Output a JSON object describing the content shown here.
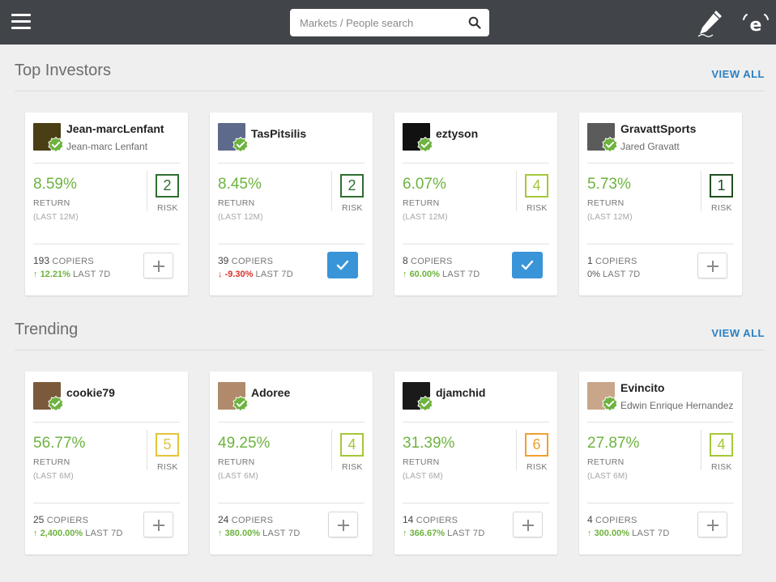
{
  "header": {
    "search_placeholder": "Markets / People search",
    "icons": [
      "menu-icon",
      "search-icon",
      "pen-icon",
      "etoro-logo-icon"
    ]
  },
  "colors": {
    "header_bg": "#414449",
    "link": "#2a7fc2",
    "positive": "#6db33f",
    "negative": "#d9302a",
    "copy_button": "#3a94d8"
  },
  "sections": [
    {
      "title": "Top Investors",
      "view_all": "VIEW ALL",
      "cards": [
        {
          "username": "Jean-marcLenfant",
          "full_name": "Jean-marc Lenfant",
          "return": "8.59%",
          "return_label": "RETURN",
          "period": "(LAST 12M)",
          "risk": "2",
          "risk_label": "RISK",
          "risk_color": "#2e6e2e",
          "copiers_count": "193",
          "copiers_label": "COPIERS",
          "change_arrow": "↑",
          "change": "12.21%",
          "change_dir": "up",
          "change_label": "LAST 7D",
          "action": "add",
          "avatar_color": "#4a3e14"
        },
        {
          "username": "TasPitsilis",
          "full_name": "",
          "return": "8.45%",
          "return_label": "RETURN",
          "period": "(LAST 12M)",
          "risk": "2",
          "risk_label": "RISK",
          "risk_color": "#2e6e2e",
          "copiers_count": "39",
          "copiers_label": "COPIERS",
          "change_arrow": "↓",
          "change": "-9.30%",
          "change_dir": "down",
          "change_label": "LAST 7D",
          "action": "copied",
          "avatar_color": "#5d6a8c"
        },
        {
          "username": "eztyson",
          "full_name": "",
          "return": "6.07%",
          "return_label": "RETURN",
          "period": "(LAST 12M)",
          "risk": "4",
          "risk_label": "RISK",
          "risk_color": "#a4c83a",
          "copiers_count": "8",
          "copiers_label": "COPIERS",
          "change_arrow": "↑",
          "change": "60.00%",
          "change_dir": "up",
          "change_label": "LAST 7D",
          "action": "copied",
          "avatar_color": "#111111"
        },
        {
          "username": "GravattSports",
          "full_name": "Jared Gravatt",
          "return": "5.73%",
          "return_label": "RETURN",
          "period": "(LAST 12M)",
          "risk": "1",
          "risk_label": "RISK",
          "risk_color": "#1f4f1f",
          "copiers_count": "1",
          "copiers_label": "COPIERS",
          "change_arrow": "",
          "change": "0%",
          "change_dir": "flat",
          "change_label": "LAST 7D",
          "action": "add",
          "avatar_color": "#5b5b5b"
        }
      ]
    },
    {
      "title": "Trending",
      "view_all": "VIEW ALL",
      "cards": [
        {
          "username": "cookie79",
          "full_name": "",
          "return": "56.77%",
          "return_label": "RETURN",
          "period": "(LAST 6M)",
          "risk": "5",
          "risk_label": "RISK",
          "risk_color": "#e3c43a",
          "copiers_count": "25",
          "copiers_label": "COPIERS",
          "change_arrow": "↑",
          "change": "2,400.00%",
          "change_dir": "up",
          "change_label": "LAST 7D",
          "action": "add",
          "avatar_color": "#7a5a3a"
        },
        {
          "username": "Adoree",
          "full_name": "",
          "return": "49.25%",
          "return_label": "RETURN",
          "period": "(LAST 6M)",
          "risk": "4",
          "risk_label": "RISK",
          "risk_color": "#a4c83a",
          "copiers_count": "24",
          "copiers_label": "COPIERS",
          "change_arrow": "↑",
          "change": "380.00%",
          "change_dir": "up",
          "change_label": "LAST 7D",
          "action": "add",
          "avatar_color": "#b08a6a"
        },
        {
          "username": "djamchid",
          "full_name": "",
          "return": "31.39%",
          "return_label": "RETURN",
          "period": "(LAST 6M)",
          "risk": "6",
          "risk_label": "RISK",
          "risk_color": "#f0a030",
          "copiers_count": "14",
          "copiers_label": "COPIERS",
          "change_arrow": "↑",
          "change": "366.67%",
          "change_dir": "up",
          "change_label": "LAST 7D",
          "action": "add",
          "avatar_color": "#1a1a1a"
        },
        {
          "username": "Evincito",
          "full_name": "Edwin Enrique Hernandez",
          "return": "27.87%",
          "return_label": "RETURN",
          "period": "(LAST 6M)",
          "risk": "4",
          "risk_label": "RISK",
          "risk_color": "#a4c83a",
          "copiers_count": "4",
          "copiers_label": "COPIERS",
          "change_arrow": "↑",
          "change": "300.00%",
          "change_dir": "up",
          "change_label": "LAST 7D",
          "action": "add",
          "avatar_color": "#c9a68a"
        }
      ]
    }
  ]
}
